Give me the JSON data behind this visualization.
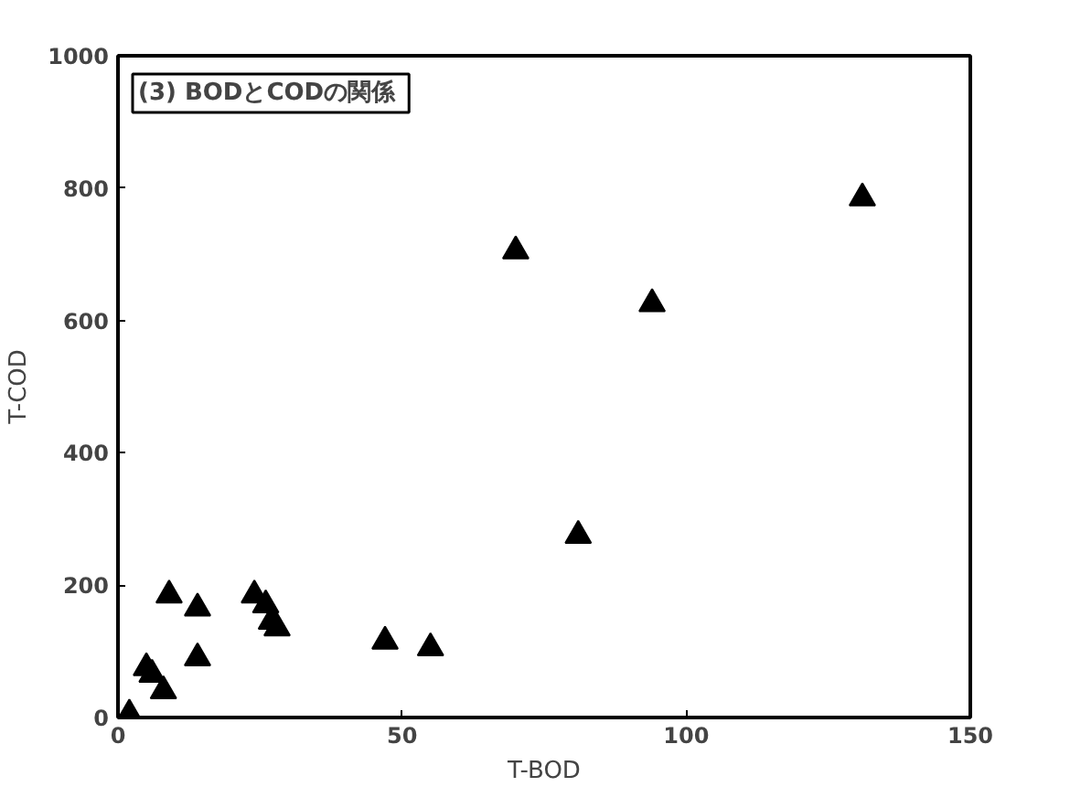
{
  "chart_data": {
    "type": "scatter",
    "xlabel": "T-BOD",
    "ylabel": "T-COD",
    "annotations": [
      "(3)  BODとCODの関係"
    ],
    "x": [
      2,
      5,
      6,
      8,
      9,
      14,
      14,
      24,
      26,
      27,
      28,
      47,
      55,
      70,
      81,
      94,
      131
    ],
    "values": [
      5,
      75,
      65,
      40,
      185,
      165,
      90,
      185,
      170,
      145,
      135,
      115,
      105,
      705,
      275,
      625,
      785
    ],
    "color": "#000000",
    "marker": "triangle",
    "grid": false,
    "xlim": [
      0,
      150
    ],
    "xticks": [
      0,
      50,
      100,
      150
    ],
    "ylim": [
      0,
      1000
    ],
    "yticks": [
      0,
      200,
      400,
      600,
      800,
      1000
    ]
  }
}
